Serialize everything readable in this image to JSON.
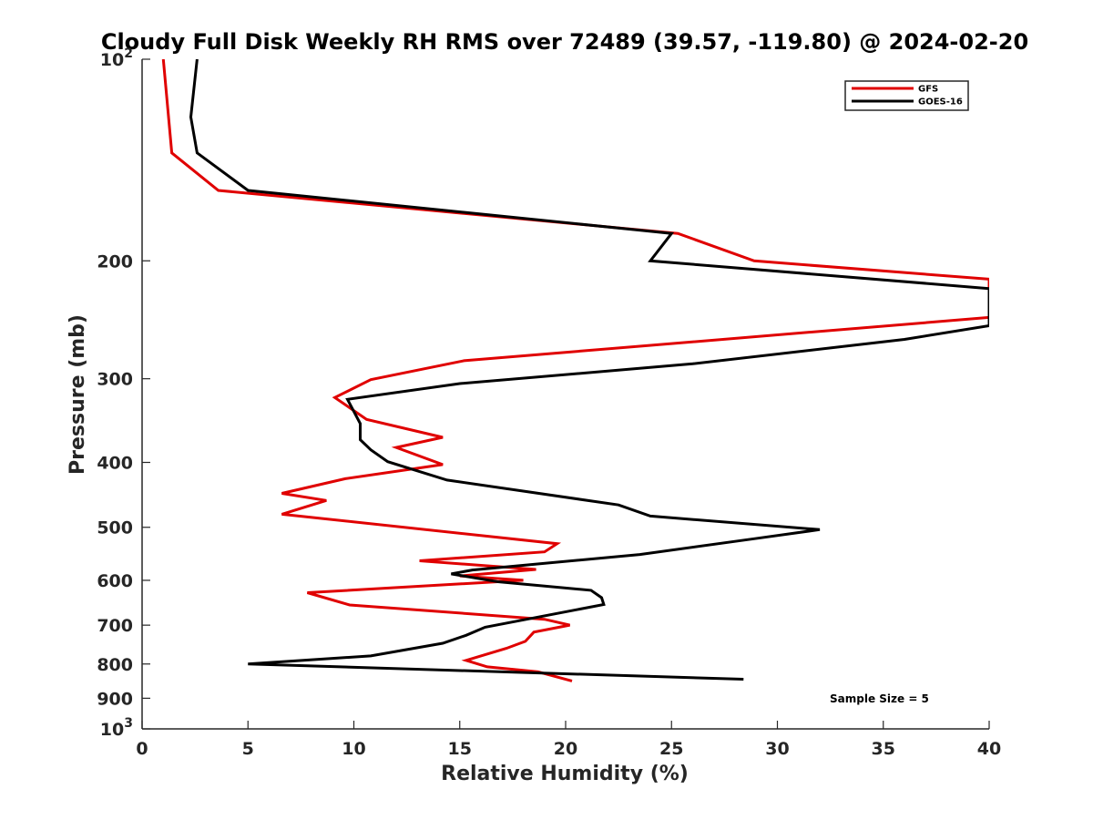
{
  "chart_data": {
    "type": "line",
    "title": "Cloudy Full Disk Weekly RH RMS over 72489 (39.57, -119.80) @ 2024-02-20",
    "xlabel": "Relative Humidity (%)",
    "ylabel": "Pressure (mb)",
    "xlim": [
      0,
      40
    ],
    "ylim": [
      100,
      1000
    ],
    "y_scale": "log",
    "y_reversed": true,
    "grid": false,
    "legend_placement": "top-right",
    "x_ticks": [
      0,
      5,
      10,
      15,
      20,
      25,
      30,
      35,
      40
    ],
    "x_tick_labels": [
      "0",
      "5",
      "10",
      "15",
      "20",
      "25",
      "30",
      "35",
      "40"
    ],
    "y_ticks": [
      {
        "value": 100,
        "base": "10",
        "exp": "2"
      },
      {
        "value": 200,
        "label": "200"
      },
      {
        "value": 300,
        "label": "300"
      },
      {
        "value": 400,
        "label": "400"
      },
      {
        "value": 500,
        "label": "500"
      },
      {
        "value": 600,
        "label": "600"
      },
      {
        "value": 700,
        "label": "700"
      },
      {
        "value": 800,
        "label": "800"
      },
      {
        "value": 900,
        "label": "900"
      },
      {
        "value": 1000,
        "base": "10",
        "exp": "3"
      }
    ],
    "annotation": "Sample Size = 5",
    "series": [
      {
        "name": "GFS",
        "color": "#e00000",
        "points": [
          [
            1.0,
            100
          ],
          [
            1.4,
            138
          ],
          [
            3.6,
            157
          ],
          [
            25.3,
            182
          ],
          [
            28.9,
            200
          ],
          [
            40.0,
            213
          ],
          [
            40.0,
            243
          ],
          [
            15.2,
            282
          ],
          [
            10.8,
            301
          ],
          [
            9.1,
            320
          ],
          [
            10.6,
            345
          ],
          [
            14.2,
            367
          ],
          [
            12.0,
            380
          ],
          [
            14.2,
            403
          ],
          [
            9.6,
            423
          ],
          [
            6.6,
            445
          ],
          [
            8.7,
            456
          ],
          [
            6.6,
            478
          ],
          [
            19.6,
            529
          ],
          [
            19.0,
            544
          ],
          [
            13.1,
            561
          ],
          [
            18.6,
            578
          ],
          [
            15.0,
            591
          ],
          [
            18.0,
            600
          ],
          [
            7.8,
            626
          ],
          [
            9.8,
            653
          ],
          [
            19.0,
            686
          ],
          [
            20.2,
            700
          ],
          [
            18.5,
            717
          ],
          [
            18.1,
            740
          ],
          [
            17.2,
            758
          ],
          [
            15.3,
            790
          ],
          [
            16.3,
            808
          ],
          [
            18.7,
            822
          ],
          [
            20.3,
            848
          ]
        ]
      },
      {
        "name": "GOES-16",
        "color": "#000000",
        "points": [
          [
            2.6,
            100
          ],
          [
            2.3,
            122
          ],
          [
            2.6,
            138
          ],
          [
            5.0,
            157
          ],
          [
            25.0,
            182
          ],
          [
            24.0,
            200
          ],
          [
            40.0,
            220
          ],
          [
            40.0,
            250
          ],
          [
            36.0,
            262
          ],
          [
            26.0,
            285
          ],
          [
            15.0,
            305
          ],
          [
            9.7,
            322
          ],
          [
            10.3,
            350
          ],
          [
            10.3,
            370
          ],
          [
            10.8,
            383
          ],
          [
            11.6,
            399
          ],
          [
            14.4,
            425
          ],
          [
            22.5,
            463
          ],
          [
            24.0,
            481
          ],
          [
            32.0,
            504
          ],
          [
            28.9,
            520
          ],
          [
            23.5,
            549
          ],
          [
            15.6,
            579
          ],
          [
            14.6,
            587
          ],
          [
            16.8,
            603
          ],
          [
            21.2,
            621
          ],
          [
            21.7,
            637
          ],
          [
            21.8,
            652
          ],
          [
            16.2,
            705
          ],
          [
            15.3,
            725
          ],
          [
            14.2,
            745
          ],
          [
            10.8,
            778
          ],
          [
            5.0,
            800
          ],
          [
            28.4,
            843
          ]
        ]
      }
    ]
  }
}
